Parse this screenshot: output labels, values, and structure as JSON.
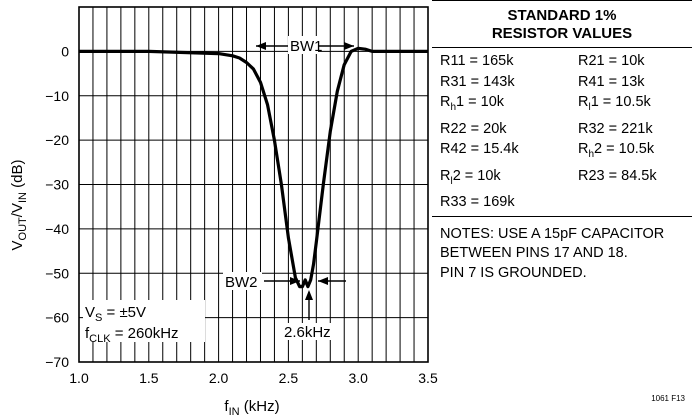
{
  "chart_data": {
    "type": "line",
    "title": "",
    "xlabel": "fIN (kHz)",
    "ylabel": "VOUT/VIN (dB)",
    "xlim": [
      1.0,
      3.5
    ],
    "ylim": [
      -70,
      10
    ],
    "x_ticks": [
      "1.0",
      "1.5",
      "2.0",
      "2.5",
      "3.0",
      "3.5"
    ],
    "y_ticks": [
      "0",
      "−10",
      "−20",
      "−30",
      "−40",
      "−50",
      "−60",
      "−70"
    ],
    "grid": true,
    "series": [
      {
        "x": [
          1.0,
          1.5,
          2.0,
          2.1,
          2.15,
          2.2,
          2.25,
          2.3,
          2.35,
          2.4,
          2.45,
          2.5,
          2.55,
          2.58,
          2.6,
          2.62,
          2.64,
          2.66,
          2.68,
          2.7,
          2.75,
          2.8,
          2.85,
          2.9,
          2.95,
          3.0,
          3.05,
          3.1,
          3.2,
          3.5
        ],
        "y": [
          0,
          0,
          -0.5,
          -1,
          -1.5,
          -2.5,
          -4,
          -7,
          -12,
          -20,
          -30,
          -42,
          -51,
          -53,
          -53,
          -51.5,
          -53,
          -51.5,
          -48,
          -43,
          -30,
          -18,
          -9,
          -3,
          0,
          0.7,
          0.5,
          0,
          0,
          0
        ]
      }
    ],
    "annotations": {
      "bw1": "BW1",
      "bw2": "BW2",
      "center": "2.6kHz",
      "vs": "VS = ±5V",
      "fclk": "fCLK = 260kHz"
    }
  },
  "table": {
    "title_line1": "STANDARD 1%",
    "title_line2": "RESISTOR VALUES",
    "rows": [
      [
        "R11 = 165k",
        "R21 = 10k"
      ],
      [
        "R31 = 143k",
        "R41 = 13k"
      ],
      [
        "Rh1 = 10k",
        "Rl1 = 10.5k"
      ],
      [
        "R22 = 20k",
        "R32 = 221k"
      ],
      [
        "R42 = 15.4k",
        "Rh2 = 10.5k"
      ],
      [
        "Rl2 = 10k",
        "R23 = 84.5k"
      ],
      [
        "R33 = 169k",
        ""
      ]
    ]
  },
  "notes": [
    "NOTES: USE A 15pF CAPACITOR",
    "BETWEEN PINS 17 AND 18.",
    "PIN 7 IS GROUNDED."
  ],
  "figure_number": "1061 F13"
}
